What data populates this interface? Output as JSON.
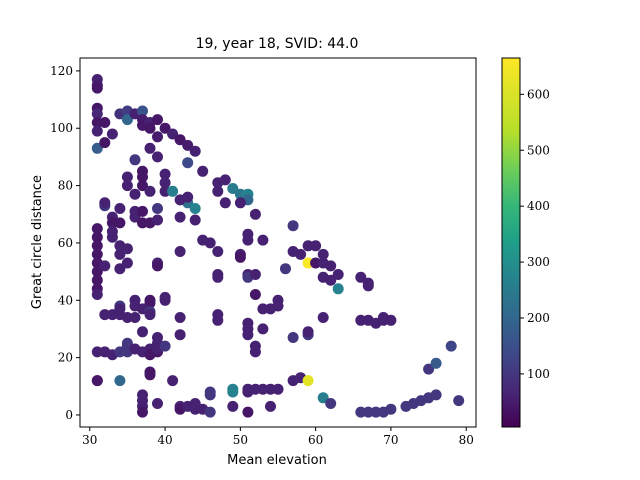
{
  "chart_data": {
    "type": "scatter",
    "title": "19, year 18, SVID: 44.0",
    "xlabel": "Mean elevation",
    "ylabel": "Great circle distance",
    "xlim": [
      28.7,
      81.3
    ],
    "ylim": [
      -4.2,
      124.5
    ],
    "xticks": [
      30,
      40,
      50,
      60,
      70,
      80
    ],
    "yticks": [
      0,
      20,
      40,
      60,
      80,
      100,
      120
    ],
    "colorbar": {
      "colormap": "viridis",
      "range": [
        5,
        665
      ],
      "ticks": [
        100,
        200,
        300,
        400,
        500,
        600
      ]
    },
    "grid": false,
    "points": [
      [
        31,
        117,
        60
      ],
      [
        31,
        115,
        50
      ],
      [
        31,
        114,
        40
      ],
      [
        31,
        107,
        40
      ],
      [
        31,
        105,
        70
      ],
      [
        31,
        102,
        40
      ],
      [
        31,
        99,
        60
      ],
      [
        31,
        93,
        180
      ],
      [
        32,
        102,
        40
      ],
      [
        32,
        95,
        40
      ],
      [
        33,
        98,
        60
      ],
      [
        34,
        105,
        90
      ],
      [
        35,
        106,
        110
      ],
      [
        35,
        103,
        200
      ],
      [
        36,
        105,
        60
      ],
      [
        37,
        106,
        160
      ],
      [
        37,
        103,
        50
      ],
      [
        37,
        101,
        40
      ],
      [
        38,
        102,
        60
      ],
      [
        38,
        100,
        40
      ],
      [
        39,
        103,
        40
      ],
      [
        39,
        97,
        50
      ],
      [
        40,
        100,
        40
      ],
      [
        41,
        98,
        60
      ],
      [
        42,
        96,
        40
      ],
      [
        43,
        94,
        50
      ],
      [
        44,
        92,
        60
      ],
      [
        38,
        93,
        60
      ],
      [
        36,
        89,
        100
      ],
      [
        39,
        90,
        60
      ],
      [
        43,
        88,
        140
      ],
      [
        45,
        85,
        60
      ],
      [
        37,
        85,
        40
      ],
      [
        37,
        83,
        40
      ],
      [
        37,
        80,
        40
      ],
      [
        35,
        83,
        60
      ],
      [
        35,
        80,
        60
      ],
      [
        36,
        77,
        60
      ],
      [
        38,
        78,
        60
      ],
      [
        40,
        84,
        60
      ],
      [
        40,
        81,
        60
      ],
      [
        40,
        78,
        60
      ],
      [
        41,
        78,
        260
      ],
      [
        43,
        74,
        230
      ],
      [
        44,
        72,
        270
      ],
      [
        42,
        75,
        60
      ],
      [
        43,
        76,
        60
      ],
      [
        47,
        81,
        60
      ],
      [
        48,
        82,
        60
      ],
      [
        49,
        79,
        250
      ],
      [
        50,
        77,
        240
      ],
      [
        51,
        77,
        270
      ],
      [
        51,
        75,
        200
      ],
      [
        47,
        78,
        60
      ],
      [
        48,
        74,
        60
      ],
      [
        50,
        74,
        60
      ],
      [
        52,
        70,
        60
      ],
      [
        32,
        73,
        100
      ],
      [
        32,
        74,
        60
      ],
      [
        33,
        69,
        60
      ],
      [
        33,
        67,
        40
      ],
      [
        34,
        72,
        60
      ],
      [
        34,
        67,
        40
      ],
      [
        36,
        71,
        60
      ],
      [
        36,
        69,
        60
      ],
      [
        37,
        71,
        40
      ],
      [
        37,
        67,
        40
      ],
      [
        38,
        67,
        40
      ],
      [
        39,
        68,
        60
      ],
      [
        39,
        72,
        100
      ],
      [
        42,
        69,
        60
      ],
      [
        44,
        68,
        60
      ],
      [
        31,
        65,
        40
      ],
      [
        31,
        62,
        40
      ],
      [
        31,
        59,
        40
      ],
      [
        31,
        56,
        40
      ],
      [
        31,
        53,
        40
      ],
      [
        31,
        50,
        40
      ],
      [
        31,
        47,
        40
      ],
      [
        31,
        44,
        40
      ],
      [
        31,
        42,
        60
      ],
      [
        33,
        64,
        60
      ],
      [
        33,
        62,
        60
      ],
      [
        34,
        59,
        60
      ],
      [
        34,
        56,
        60
      ],
      [
        35,
        58,
        60
      ],
      [
        35,
        53,
        60
      ],
      [
        32,
        52,
        60
      ],
      [
        34,
        51,
        60
      ],
      [
        39,
        53,
        60
      ],
      [
        39,
        52,
        40
      ],
      [
        42,
        57,
        60
      ],
      [
        45,
        61,
        60
      ],
      [
        46,
        60,
        60
      ],
      [
        47,
        57,
        60
      ],
      [
        51,
        63,
        60
      ],
      [
        51,
        61,
        60
      ],
      [
        53,
        61,
        60
      ],
      [
        50,
        56,
        60
      ],
      [
        50,
        55,
        40
      ],
      [
        51,
        49,
        60
      ],
      [
        51,
        48,
        100
      ],
      [
        52,
        49,
        60
      ],
      [
        47,
        49,
        60
      ],
      [
        47,
        48,
        60
      ],
      [
        57,
        66,
        100
      ],
      [
        57,
        57,
        60
      ],
      [
        58,
        56,
        60
      ],
      [
        59,
        59,
        60
      ],
      [
        60,
        59,
        60
      ],
      [
        59,
        53,
        660
      ],
      [
        60,
        53,
        40
      ],
      [
        61,
        56,
        60
      ],
      [
        61,
        53,
        60
      ],
      [
        62,
        52,
        60
      ],
      [
        61,
        48,
        60
      ],
      [
        62,
        47,
        60
      ],
      [
        63,
        44,
        270
      ],
      [
        63,
        49,
        60
      ],
      [
        66,
        48,
        60
      ],
      [
        67,
        46,
        60
      ],
      [
        67,
        45,
        60
      ],
      [
        56,
        51,
        100
      ],
      [
        52,
        42,
        40
      ],
      [
        55,
        40,
        60
      ],
      [
        55,
        38,
        60
      ],
      [
        53,
        37,
        60
      ],
      [
        54,
        37,
        60
      ],
      [
        36,
        40,
        60
      ],
      [
        38,
        40,
        40
      ],
      [
        38,
        39,
        40
      ],
      [
        40,
        40,
        60
      ],
      [
        40,
        41,
        60
      ],
      [
        36,
        38,
        60
      ],
      [
        37,
        37,
        60
      ],
      [
        34,
        38,
        100
      ],
      [
        34,
        37,
        60
      ],
      [
        33,
        35,
        60
      ],
      [
        34,
        35,
        60
      ],
      [
        32,
        35,
        60
      ],
      [
        35,
        34,
        60
      ],
      [
        36,
        34,
        60
      ],
      [
        38,
        36,
        100
      ],
      [
        38,
        35,
        60
      ],
      [
        42,
        34,
        60
      ],
      [
        47,
        35,
        60
      ],
      [
        47,
        33,
        60
      ],
      [
        51,
        32,
        60
      ],
      [
        51,
        30,
        60
      ],
      [
        53,
        30,
        60
      ],
      [
        51,
        28,
        60
      ],
      [
        37,
        29,
        60
      ],
      [
        39,
        27,
        60
      ],
      [
        39,
        25,
        60
      ],
      [
        42,
        28,
        60
      ],
      [
        52,
        24,
        60
      ],
      [
        52,
        22,
        60
      ],
      [
        57,
        27,
        100
      ],
      [
        59,
        28,
        100
      ],
      [
        59,
        29,
        60
      ],
      [
        61,
        34,
        60
      ],
      [
        67,
        33,
        60
      ],
      [
        68,
        32,
        60
      ],
      [
        69,
        34,
        60
      ],
      [
        69,
        33,
        60
      ],
      [
        70,
        33,
        60
      ],
      [
        66,
        33,
        60
      ],
      [
        31,
        22,
        60
      ],
      [
        32,
        22,
        60
      ],
      [
        33,
        21,
        60
      ],
      [
        34,
        22,
        100
      ],
      [
        35,
        22,
        100
      ],
      [
        35,
        24,
        100
      ],
      [
        35,
        25,
        100
      ],
      [
        36,
        23,
        60
      ],
      [
        37,
        22,
        60
      ],
      [
        38,
        23,
        60
      ],
      [
        38,
        21,
        40
      ],
      [
        39,
        22,
        40
      ],
      [
        39,
        23,
        60
      ],
      [
        40,
        24,
        100
      ],
      [
        38,
        15,
        40
      ],
      [
        38,
        14,
        40
      ],
      [
        41,
        12,
        60
      ],
      [
        37,
        7,
        60
      ],
      [
        37,
        5,
        60
      ],
      [
        37,
        3,
        60
      ],
      [
        37,
        1,
        40
      ],
      [
        31,
        12,
        60
      ],
      [
        31,
        12,
        40
      ],
      [
        34,
        12,
        200
      ],
      [
        39,
        4,
        60
      ],
      [
        42,
        3,
        60
      ],
      [
        42,
        2,
        40
      ],
      [
        43,
        3,
        60
      ],
      [
        44,
        4,
        60
      ],
      [
        44,
        2,
        60
      ],
      [
        45,
        2,
        60
      ],
      [
        46,
        1,
        100
      ],
      [
        46,
        7,
        100
      ],
      [
        46,
        8,
        100
      ],
      [
        49,
        9,
        270
      ],
      [
        49,
        8,
        270
      ],
      [
        51,
        8,
        60
      ],
      [
        51,
        9,
        60
      ],
      [
        52,
        9,
        60
      ],
      [
        53,
        9,
        60
      ],
      [
        54,
        9,
        60
      ],
      [
        55,
        9,
        60
      ],
      [
        54,
        3,
        60
      ],
      [
        51,
        1,
        40
      ],
      [
        49,
        3,
        60
      ],
      [
        57,
        12,
        60
      ],
      [
        58,
        13,
        60
      ],
      [
        59,
        12,
        620
      ],
      [
        61,
        6,
        260
      ],
      [
        62,
        4,
        100
      ],
      [
        66,
        1,
        100
      ],
      [
        67,
        1,
        100
      ],
      [
        68,
        1,
        100
      ],
      [
        69,
        1,
        100
      ],
      [
        70,
        2,
        100
      ],
      [
        72,
        3,
        100
      ],
      [
        73,
        4,
        100
      ],
      [
        74,
        5,
        100
      ],
      [
        75,
        6,
        100
      ],
      [
        76,
        7,
        100
      ],
      [
        75,
        16,
        100
      ],
      [
        76,
        18,
        170
      ],
      [
        78,
        24,
        130
      ],
      [
        79,
        5,
        100
      ]
    ]
  }
}
